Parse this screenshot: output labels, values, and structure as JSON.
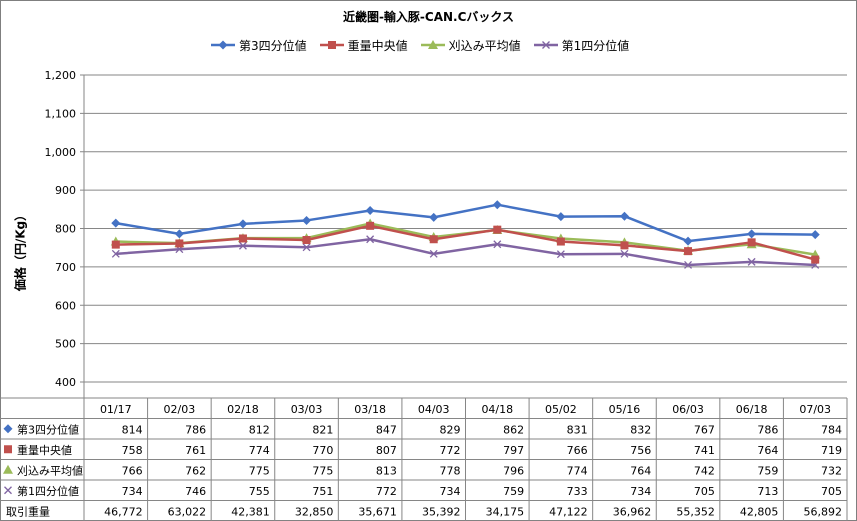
{
  "chart_data": {
    "type": "line",
    "title": "近畿圏-輸入豚-CAN.Cバックス",
    "ylabel": "価格（円/Kg）",
    "xlabel": "",
    "ylim": [
      400,
      1200
    ],
    "yticks": [
      400,
      500,
      600,
      700,
      800,
      900,
      1000,
      1100,
      1200
    ],
    "ytick_labels": [
      "400",
      "500",
      "600",
      "700",
      "800",
      "900",
      "1,000",
      "1,100",
      "1,200"
    ],
    "grid": true,
    "legend": "top",
    "categories": [
      "01/17",
      "02/03",
      "02/18",
      "03/03",
      "03/18",
      "04/03",
      "04/18",
      "05/02",
      "05/16",
      "06/03",
      "06/18",
      "07/03"
    ],
    "series": [
      {
        "name": "第3四分位値",
        "color": "#4472c4",
        "marker": "diamond",
        "values": [
          814,
          786,
          812,
          821,
          847,
          829,
          862,
          831,
          832,
          767,
          786,
          784
        ],
        "labels": [
          "814",
          "786",
          "812",
          "821",
          "847",
          "829",
          "862",
          "831",
          "832",
          "767",
          "786",
          "784"
        ]
      },
      {
        "name": "重量中央値",
        "color": "#c0504d",
        "marker": "square",
        "values": [
          758,
          761,
          774,
          770,
          807,
          772,
          797,
          766,
          756,
          741,
          764,
          719
        ],
        "labels": [
          "758",
          "761",
          "774",
          "770",
          "807",
          "772",
          "797",
          "766",
          "756",
          "741",
          "764",
          "719"
        ]
      },
      {
        "name": "刈込み平均値",
        "color": "#9bbb59",
        "marker": "triangle",
        "values": [
          766,
          762,
          775,
          775,
          813,
          778,
          796,
          774,
          764,
          742,
          759,
          732
        ],
        "labels": [
          "766",
          "762",
          "775",
          "775",
          "813",
          "778",
          "796",
          "774",
          "764",
          "742",
          "759",
          "732"
        ]
      },
      {
        "name": "第1四分位値",
        "color": "#8064a2",
        "marker": "x",
        "values": [
          734,
          746,
          755,
          751,
          772,
          734,
          759,
          733,
          734,
          705,
          713,
          705
        ],
        "labels": [
          "734",
          "746",
          "755",
          "751",
          "772",
          "734",
          "759",
          "733",
          "734",
          "705",
          "713",
          "705"
        ]
      }
    ],
    "table_extra_row": {
      "name": "取引重量",
      "values": [
        "46,772",
        "63,022",
        "42,381",
        "32,850",
        "35,671",
        "35,392",
        "34,175",
        "47,122",
        "36,962",
        "55,352",
        "42,805",
        "56,892"
      ]
    }
  }
}
